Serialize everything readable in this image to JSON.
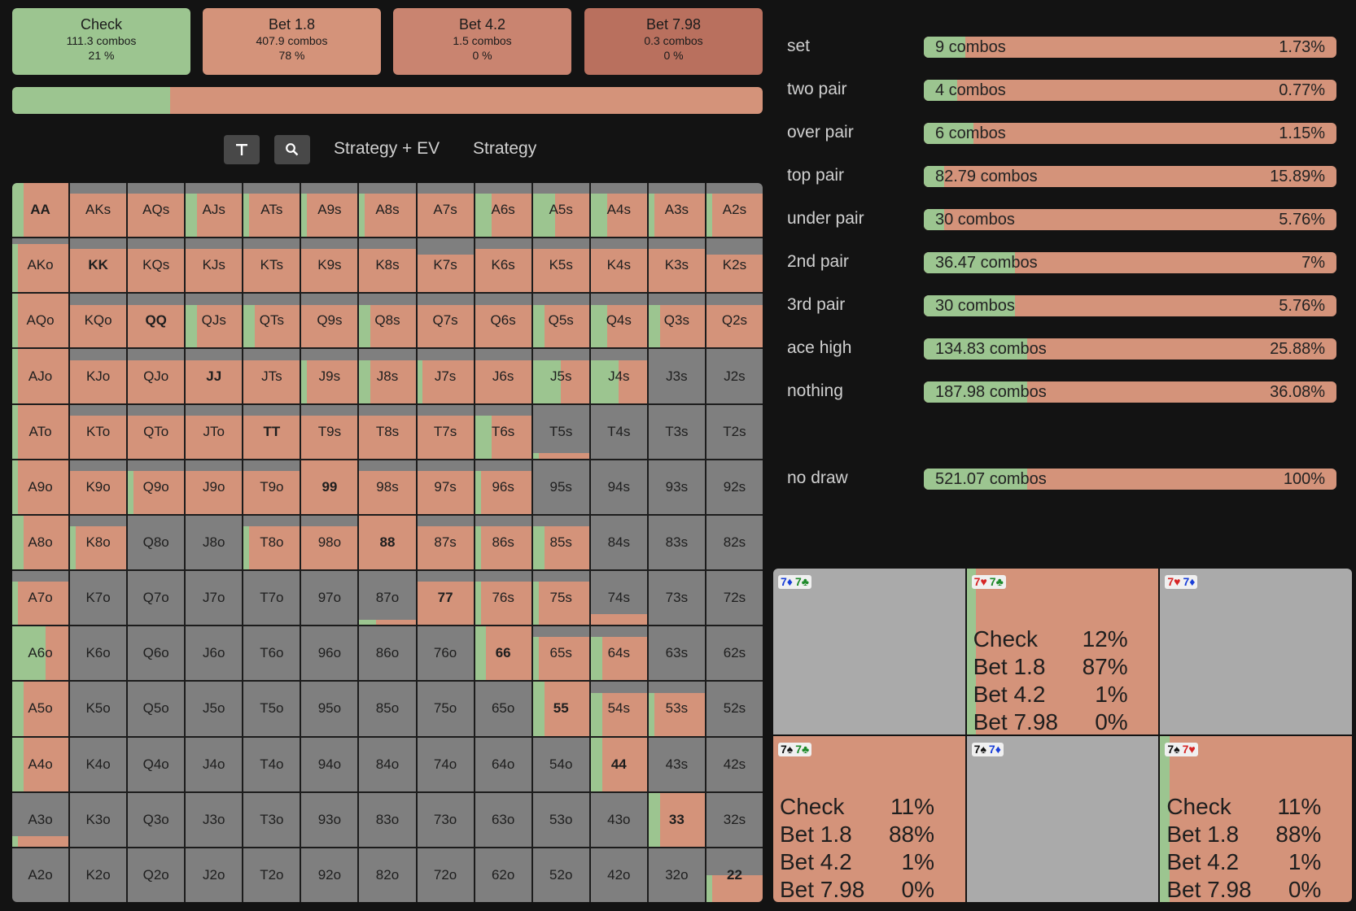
{
  "actions": [
    {
      "name": "Check",
      "combos": "111.3 combos",
      "pct": "21 %",
      "color": "#9cc590"
    },
    {
      "name": "Bet 1.8",
      "combos": "407.9 combos",
      "pct": "78 %",
      "color": "#d4937a"
    },
    {
      "name": "Bet 4.2",
      "combos": "1.5 combos",
      "pct": "0 %",
      "color": "#c98470"
    },
    {
      "name": "Bet 7.98",
      "combos": "0.3 combos",
      "pct": "0 %",
      "color": "#b9705e"
    }
  ],
  "frequency_bar": {
    "check_fraction": 0.21
  },
  "toolbar": {
    "filter_icon": "filter-icon",
    "search_icon": "search-icon",
    "strategy_ev_label": "Strategy + EV",
    "strategy_label": "Strategy"
  },
  "colors": {
    "check": "#9cc590",
    "bet": "#d4937a",
    "no_range": "#7f7f7f",
    "dark_bg": "#131313"
  },
  "hand_categories": {
    "header": "",
    "items": [
      {
        "name": "set",
        "combos": "9 combos",
        "pct": "1.73%",
        "check_fraction": 0.1
      },
      {
        "name": "two pair",
        "combos": "4 combos",
        "pct": "0.77%",
        "check_fraction": 0.08
      },
      {
        "name": "over pair",
        "combos": "6 combos",
        "pct": "1.15%",
        "check_fraction": 0.12
      },
      {
        "name": "top pair",
        "combos": "82.79 combos",
        "pct": "15.89%",
        "check_fraction": 0.05
      },
      {
        "name": "under pair",
        "combos": "30 combos",
        "pct": "5.76%",
        "check_fraction": 0.05
      },
      {
        "name": "2nd pair",
        "combos": "36.47 combos",
        "pct": "7%",
        "check_fraction": 0.22
      },
      {
        "name": "3rd pair",
        "combos": "30 combos",
        "pct": "5.76%",
        "check_fraction": 0.22
      },
      {
        "name": "ace high",
        "combos": "134.83 combos",
        "pct": "25.88%",
        "check_fraction": 0.25
      },
      {
        "name": "nothing",
        "combos": "187.98 combos",
        "pct": "36.08%",
        "check_fraction": 0.25
      }
    ],
    "draws_header": "",
    "draws": [
      {
        "name": "no draw",
        "combos": "521.07 combos",
        "pct": "100%",
        "check_fraction": 0.25
      }
    ]
  },
  "range_grid": {
    "cells": [
      [
        "AA",
        "AKs",
        "AQs",
        "AJs",
        "ATs",
        "A9s",
        "A8s",
        "A7s",
        "A6s",
        "A5s",
        "A4s",
        "A3s",
        "A2s"
      ],
      [
        "AKo",
        "KK",
        "KQs",
        "KJs",
        "KTs",
        "K9s",
        "K8s",
        "K7s",
        "K6s",
        "K5s",
        "K4s",
        "K3s",
        "K2s"
      ],
      [
        "AQo",
        "KQo",
        "QQ",
        "QJs",
        "QTs",
        "Q9s",
        "Q8s",
        "Q7s",
        "Q6s",
        "Q5s",
        "Q4s",
        "Q3s",
        "Q2s"
      ],
      [
        "AJo",
        "KJo",
        "QJo",
        "JJ",
        "JTs",
        "J9s",
        "J8s",
        "J7s",
        "J6s",
        "J5s",
        "J4s",
        "J3s",
        "J2s"
      ],
      [
        "ATo",
        "KTo",
        "QTo",
        "JTo",
        "TT",
        "T9s",
        "T8s",
        "T7s",
        "T6s",
        "T5s",
        "T4s",
        "T3s",
        "T2s"
      ],
      [
        "A9o",
        "K9o",
        "Q9o",
        "J9o",
        "T9o",
        "99",
        "98s",
        "97s",
        "96s",
        "95s",
        "94s",
        "93s",
        "92s"
      ],
      [
        "A8o",
        "K8o",
        "Q8o",
        "J8o",
        "T8o",
        "98o",
        "88",
        "87s",
        "86s",
        "85s",
        "84s",
        "83s",
        "82s"
      ],
      [
        "A7o",
        "K7o",
        "Q7o",
        "J7o",
        "T7o",
        "97o",
        "87o",
        "77",
        "76s",
        "75s",
        "74s",
        "73s",
        "72s"
      ],
      [
        "A6o",
        "K6o",
        "Q6o",
        "J6o",
        "T6o",
        "96o",
        "86o",
        "76o",
        "66",
        "65s",
        "64s",
        "63s",
        "62s"
      ],
      [
        "A5o",
        "K5o",
        "Q5o",
        "J5o",
        "T5o",
        "95o",
        "85o",
        "75o",
        "65o",
        "55",
        "54s",
        "53s",
        "52s"
      ],
      [
        "A4o",
        "K4o",
        "Q4o",
        "J4o",
        "T4o",
        "94o",
        "84o",
        "74o",
        "64o",
        "54o",
        "44",
        "43s",
        "42s"
      ],
      [
        "A3o",
        "K3o",
        "Q3o",
        "J3o",
        "T3o",
        "93o",
        "83o",
        "73o",
        "63o",
        "53o",
        "43o",
        "33",
        "32s"
      ],
      [
        "A2o",
        "K2o",
        "Q2o",
        "J2o",
        "T2o",
        "92o",
        "82o",
        "72o",
        "62o",
        "52o",
        "42o",
        "32o",
        "22"
      ]
    ],
    "freq": [
      [
        [
          1,
          0.2
        ],
        [
          0.8,
          0
        ],
        [
          0.8,
          0
        ],
        [
          0.8,
          0.2
        ],
        [
          0.8,
          0.1
        ],
        [
          0.8,
          0.1
        ],
        [
          0.8,
          0.1
        ],
        [
          0.8,
          0
        ],
        [
          0.8,
          0.3
        ],
        [
          0.8,
          0.4
        ],
        [
          0.8,
          0.3
        ],
        [
          0.8,
          0.1
        ],
        [
          0.8,
          0.1
        ]
      ],
      [
        [
          0.9,
          0.1
        ],
        [
          0.8,
          0
        ],
        [
          0.8,
          0
        ],
        [
          0.8,
          0
        ],
        [
          0.8,
          0
        ],
        [
          0.8,
          0
        ],
        [
          0.8,
          0
        ],
        [
          0.7,
          0
        ],
        [
          0.8,
          0
        ],
        [
          0.8,
          0
        ],
        [
          0.8,
          0
        ],
        [
          0.8,
          0
        ],
        [
          0.7,
          0
        ]
      ],
      [
        [
          1,
          0.1
        ],
        [
          0.8,
          0
        ],
        [
          0.8,
          0
        ],
        [
          0.8,
          0.2
        ],
        [
          0.8,
          0.2
        ],
        [
          0.8,
          0
        ],
        [
          0.8,
          0.2
        ],
        [
          0.8,
          0
        ],
        [
          0.8,
          0
        ],
        [
          0.8,
          0.2
        ],
        [
          0.8,
          0.3
        ],
        [
          0.8,
          0.2
        ],
        [
          0.8,
          0
        ]
      ],
      [
        [
          1,
          0.1
        ],
        [
          0.8,
          0
        ],
        [
          0.8,
          0
        ],
        [
          0.8,
          0
        ],
        [
          0.8,
          0
        ],
        [
          0.8,
          0.1
        ],
        [
          0.8,
          0.2
        ],
        [
          0.8,
          0.1
        ],
        [
          0.8,
          0
        ],
        [
          0.8,
          0.5
        ],
        [
          0.8,
          0.5
        ],
        [
          0,
          0
        ],
        [
          0,
          0
        ]
      ],
      [
        [
          1,
          0.1
        ],
        [
          0.8,
          0
        ],
        [
          0.8,
          0
        ],
        [
          0.8,
          0
        ],
        [
          0.8,
          0
        ],
        [
          0.8,
          0
        ],
        [
          0.8,
          0
        ],
        [
          0.8,
          0
        ],
        [
          0.8,
          0.3
        ],
        [
          0.1,
          0.1
        ],
        [
          0,
          0
        ],
        [
          0,
          0
        ],
        [
          0,
          0
        ]
      ],
      [
        [
          1,
          0.1
        ],
        [
          0.8,
          0
        ],
        [
          0.8,
          0.1
        ],
        [
          0.8,
          0
        ],
        [
          0.8,
          0
        ],
        [
          1,
          0
        ],
        [
          0.8,
          0
        ],
        [
          0.8,
          0
        ],
        [
          0.8,
          0.1
        ],
        [
          0,
          0
        ],
        [
          0,
          0
        ],
        [
          0,
          0
        ],
        [
          0,
          0
        ]
      ],
      [
        [
          1,
          0.2
        ],
        [
          0.8,
          0.1
        ],
        [
          0,
          0
        ],
        [
          0,
          0
        ],
        [
          0.8,
          0.1
        ],
        [
          0.8,
          0
        ],
        [
          1,
          0
        ],
        [
          0.8,
          0
        ],
        [
          0.8,
          0.1
        ],
        [
          0.8,
          0.2
        ],
        [
          0,
          0
        ],
        [
          0,
          0
        ],
        [
          0,
          0
        ]
      ],
      [
        [
          0.8,
          0.1
        ],
        [
          0,
          0
        ],
        [
          0,
          0
        ],
        [
          0,
          0
        ],
        [
          0,
          0
        ],
        [
          0,
          0
        ],
        [
          0.1,
          0.3
        ],
        [
          0.8,
          0
        ],
        [
          0.8,
          0.1
        ],
        [
          0.8,
          0.1
        ],
        [
          0.2,
          0
        ],
        [
          0,
          0
        ],
        [
          0,
          0
        ]
      ],
      [
        [
          1,
          0.6
        ],
        [
          0,
          0
        ],
        [
          0,
          0
        ],
        [
          0,
          0
        ],
        [
          0,
          0
        ],
        [
          0,
          0
        ],
        [
          0,
          0
        ],
        [
          0,
          0
        ],
        [
          1,
          0.2
        ],
        [
          0.8,
          0.1
        ],
        [
          0.8,
          0.2
        ],
        [
          0,
          0
        ],
        [
          0,
          0
        ]
      ],
      [
        [
          1,
          0.2
        ],
        [
          0,
          0
        ],
        [
          0,
          0
        ],
        [
          0,
          0
        ],
        [
          0,
          0
        ],
        [
          0,
          0
        ],
        [
          0,
          0
        ],
        [
          0,
          0
        ],
        [
          0,
          0
        ],
        [
          1,
          0.2
        ],
        [
          0.8,
          0.2
        ],
        [
          0.8,
          0.1
        ],
        [
          0,
          0
        ]
      ],
      [
        [
          1,
          0.2
        ],
        [
          0,
          0
        ],
        [
          0,
          0
        ],
        [
          0,
          0
        ],
        [
          0,
          0
        ],
        [
          0,
          0
        ],
        [
          0,
          0
        ],
        [
          0,
          0
        ],
        [
          0,
          0
        ],
        [
          0,
          0
        ],
        [
          1,
          0.2
        ],
        [
          0,
          0
        ],
        [
          0,
          0
        ]
      ],
      [
        [
          0.2,
          0.1
        ],
        [
          0,
          0
        ],
        [
          0,
          0
        ],
        [
          0,
          0
        ],
        [
          0,
          0
        ],
        [
          0,
          0
        ],
        [
          0,
          0
        ],
        [
          0,
          0
        ],
        [
          0,
          0
        ],
        [
          0,
          0
        ],
        [
          0,
          0
        ],
        [
          1,
          0.2
        ],
        [
          0,
          0
        ]
      ],
      [
        [
          0,
          0
        ],
        [
          0,
          0
        ],
        [
          0,
          0
        ],
        [
          0,
          0
        ],
        [
          0,
          0
        ],
        [
          0,
          0
        ],
        [
          0,
          0
        ],
        [
          0,
          0
        ],
        [
          0,
          0
        ],
        [
          0,
          0
        ],
        [
          0,
          0
        ],
        [
          0,
          0
        ],
        [
          0.5,
          0.1
        ]
      ]
    ]
  },
  "combo_detail": [
    {
      "r1": "7",
      "s1": "♦",
      "r2": "7",
      "s2": "♣",
      "c1": "#1a3fd8",
      "c2": "#1e8a2a",
      "has_stats": false,
      "check_fraction": 0
    },
    {
      "r1": "7",
      "s1": "♥",
      "r2": "7",
      "s2": "♣",
      "c1": "#d62424",
      "c2": "#1e8a2a",
      "has_stats": true,
      "check_fraction": 0.05,
      "stats": [
        {
          "a": "Check",
          "p": "12%"
        },
        {
          "a": "Bet 1.8",
          "p": "87%"
        },
        {
          "a": "Bet 4.2",
          "p": "1%"
        },
        {
          "a": "Bet 7.98",
          "p": "0%"
        }
      ]
    },
    {
      "r1": "7",
      "s1": "♥",
      "r2": "7",
      "s2": "♦",
      "c1": "#d62424",
      "c2": "#1a3fd8",
      "has_stats": false,
      "check_fraction": 0
    },
    {
      "r1": "7",
      "s1": "♠",
      "r2": "7",
      "s2": "♣",
      "c1": "#111111",
      "c2": "#1e8a2a",
      "has_stats": true,
      "check_fraction": 0,
      "stats": [
        {
          "a": "Check",
          "p": "11%"
        },
        {
          "a": "Bet 1.8",
          "p": "88%"
        },
        {
          "a": "Bet 4.2",
          "p": "1%"
        },
        {
          "a": "Bet 7.98",
          "p": "0%"
        }
      ]
    },
    {
      "r1": "7",
      "s1": "♠",
      "r2": "7",
      "s2": "♦",
      "c1": "#111111",
      "c2": "#1a3fd8",
      "has_stats": false,
      "check_fraction": 0
    },
    {
      "r1": "7",
      "s1": "♠",
      "r2": "7",
      "s2": "♥",
      "c1": "#111111",
      "c2": "#d62424",
      "has_stats": true,
      "check_fraction": 0.05,
      "stats": [
        {
          "a": "Check",
          "p": "11%"
        },
        {
          "a": "Bet 1.8",
          "p": "88%"
        },
        {
          "a": "Bet 4.2",
          "p": "1%"
        },
        {
          "a": "Bet 7.98",
          "p": "0%"
        }
      ]
    }
  ]
}
